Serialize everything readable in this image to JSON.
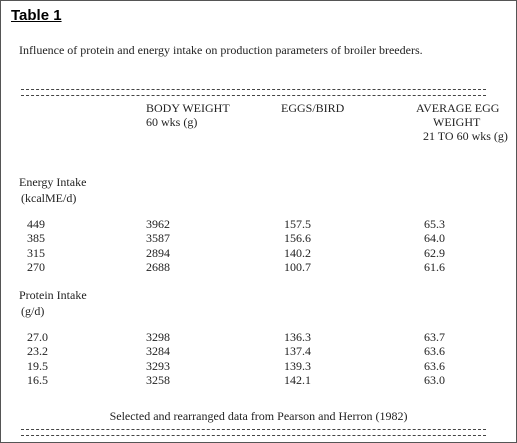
{
  "header": {
    "title": "Table 1"
  },
  "caption": "Influence of protein and energy intake on production parameters of broiler breeders.",
  "table": {
    "columns": [
      [
        "BODY WEIGHT",
        "60 wks (g)"
      ],
      [
        "EGGS/BIRD"
      ],
      [
        "AVERAGE EGG",
        "WEIGHT",
        "21 TO 60 wks (g)"
      ]
    ],
    "sections": [
      {
        "label": [
          "Energy Intake",
          "(kcalME/d)"
        ],
        "rows": [
          [
            "449",
            "3962",
            "157.5",
            "65.3"
          ],
          [
            "385",
            "3587",
            "156.6",
            "64.0"
          ],
          [
            "315",
            "2894",
            "140.2",
            "62.9"
          ],
          [
            "270",
            "2688",
            "100.7",
            "61.6"
          ]
        ]
      },
      {
        "label": [
          "Protein Intake",
          "(g/d)"
        ],
        "rows": [
          [
            "27.0",
            "3298",
            "136.3",
            "63.7"
          ],
          [
            "23.2",
            "3284",
            "137.4",
            "63.6"
          ],
          [
            "19.5",
            "3293",
            "139.3",
            "63.6"
          ],
          [
            "16.5",
            "3258",
            "142.1",
            "63.0"
          ]
        ]
      }
    ]
  },
  "footer": "Selected and rearranged data from Pearson and Herron (1982)"
}
